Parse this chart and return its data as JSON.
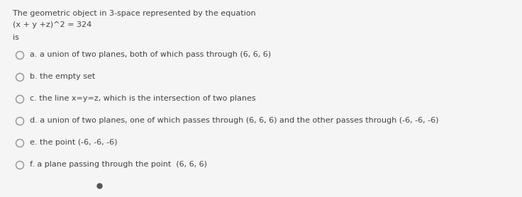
{
  "background_color": "#f5f5f5",
  "title_line1": "The geometric object in 3-space represented by the equation",
  "title_line2": "(x + y +z)^2 = 324",
  "title_line3": "is",
  "options": [
    "a. a union of two planes, both of which pass through (6, 6, 6)",
    "b. the empty set",
    "c. the line x=y=z, which is the intersection of two planes",
    "d. a union of two planes, one of which passes through (6, 6, 6) and the other passes through (-6, -6, -6)",
    "e. the point (-6, -6, -6)",
    "f. a plane passing through the point  (6, 6, 6)"
  ],
  "text_color": "#444444",
  "circle_color": "#999999",
  "font_size_header": 8.0,
  "font_size_options": 8.0,
  "dot_color": "#555555"
}
